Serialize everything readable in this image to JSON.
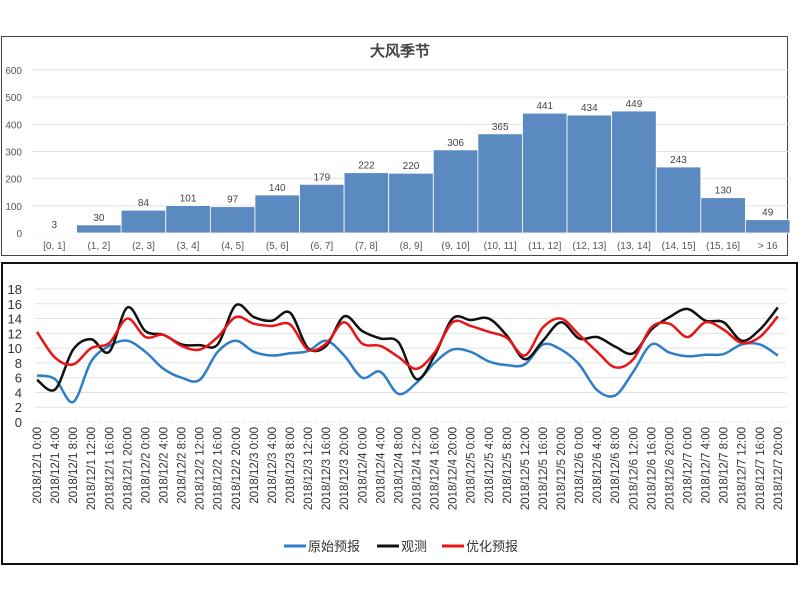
{
  "chart_data": [
    {
      "type": "bar",
      "title": "大风季节",
      "categories": [
        "[0, 1]",
        "(1, 2]",
        "(2, 3]",
        "(3, 4]",
        "(4, 5]",
        "(5, 6]",
        "(6, 7]",
        "(7, 8]",
        "(8, 9]",
        "(9, 10]",
        "(10, 11]",
        "(11, 12]",
        "(12, 13]",
        "(13, 14]",
        "(14, 15]",
        "(15, 16]",
        "> 16"
      ],
      "values": [
        3,
        30,
        84,
        101,
        97,
        140,
        179,
        222,
        220,
        306,
        365,
        441,
        434,
        449,
        243,
        130,
        49
      ],
      "ylim": [
        0,
        600
      ],
      "yticks": [
        0,
        100,
        200,
        300,
        400,
        500,
        600
      ],
      "grid": true,
      "color": "#5b8ac0",
      "xlabel": "",
      "ylabel": ""
    },
    {
      "type": "line",
      "categories": [
        "2018/12/1 0:00",
        "2018/12/1 4:00",
        "2018/12/1 8:00",
        "2018/12/1 12:00",
        "2018/12/1 16:00",
        "2018/12/1 20:00",
        "2018/12/2 0:00",
        "2018/12/2 4:00",
        "2018/12/2 8:00",
        "2018/12/2 12:00",
        "2018/12/2 16:00",
        "2018/12/2 20:00",
        "2018/12/3 0:00",
        "2018/12/3 4:00",
        "2018/12/3 8:00",
        "2018/12/3 12:00",
        "2018/12/3 16:00",
        "2018/12/3 20:00",
        "2018/12/4 0:00",
        "2018/12/4 4:00",
        "2018/12/4 8:00",
        "2018/12/4 12:00",
        "2018/12/4 16:00",
        "2018/12/4 20:00",
        "2018/12/5 0:00",
        "2018/12/5 4:00",
        "2018/12/5 8:00",
        "2018/12/5 12:00",
        "2018/12/5 16:00",
        "2018/12/5 20:00",
        "2018/12/6 0:00",
        "2018/12/6 4:00",
        "2018/12/6 8:00",
        "2018/12/6 12:00",
        "2018/12/6 16:00",
        "2018/12/6 20:00",
        "2018/12/7 0:00",
        "2018/12/7 4:00",
        "2018/12/7 8:00",
        "2018/12/7 12:00",
        "2018/12/7 16:00",
        "2018/12/7 20:00"
      ],
      "series": [
        {
          "name": "原始预报",
          "color": "#2e7dc8",
          "values": [
            6.3,
            5.8,
            2.7,
            8.2,
            10.3,
            11.0,
            9.5,
            7.2,
            6.0,
            5.7,
            9.5,
            11.0,
            9.5,
            9.0,
            9.3,
            9.6,
            11.0,
            9.0,
            6.0,
            6.8,
            3.8,
            5.3,
            8.0,
            9.8,
            9.5,
            8.2,
            7.7,
            7.8,
            10.5,
            9.8,
            7.8,
            4.3,
            3.6,
            6.8,
            10.5,
            9.4,
            8.9,
            9.1,
            9.2,
            10.5,
            10.5,
            9.0
          ]
        },
        {
          "name": "观测",
          "color": "#111111",
          "values": [
            5.7,
            4.4,
            9.8,
            11.2,
            9.5,
            15.5,
            12.3,
            11.8,
            10.5,
            10.4,
            10.5,
            15.8,
            14.2,
            13.7,
            14.8,
            10.0,
            10.3,
            14.3,
            12.3,
            11.3,
            10.8,
            5.8,
            9.0,
            14.0,
            13.8,
            14.0,
            11.7,
            8.5,
            11.0,
            13.5,
            11.3,
            11.5,
            10.2,
            9.3,
            12.5,
            14.2,
            15.3,
            13.7,
            13.5,
            11.0,
            12.5,
            15.5
          ]
        },
        {
          "name": "优化预报",
          "color": "#e81416",
          "values": [
            12.2,
            8.7,
            7.8,
            10.0,
            10.7,
            14.0,
            11.5,
            11.8,
            10.3,
            9.8,
            11.5,
            14.2,
            13.3,
            13.0,
            13.2,
            9.8,
            10.6,
            13.5,
            10.6,
            10.3,
            8.8,
            7.2,
            9.4,
            13.5,
            13.0,
            12.2,
            11.4,
            9.0,
            12.8,
            14.0,
            11.8,
            9.5,
            7.4,
            8.5,
            12.8,
            13.3,
            11.5,
            13.5,
            12.5,
            10.7,
            11.5,
            14.3
          ]
        }
      ],
      "ylim": [
        0,
        18
      ],
      "yticks": [
        0,
        2,
        4,
        6,
        8,
        10,
        12,
        14,
        16,
        18
      ],
      "grid": true,
      "legend": "bottom"
    }
  ]
}
